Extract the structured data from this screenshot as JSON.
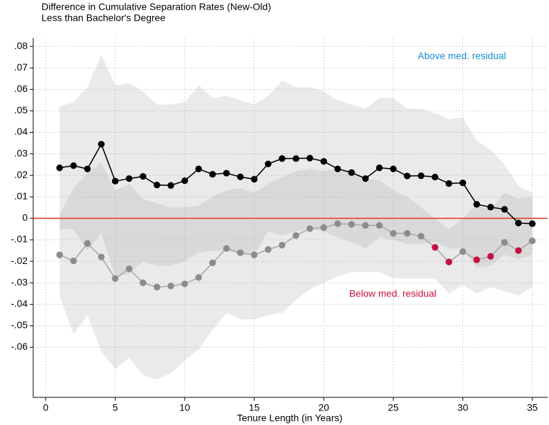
{
  "chart_data": {
    "type": "line",
    "title": "Difference in Cumulative Separation Rates (New-Old)",
    "subtitle": "Less than Bachelor's Degree",
    "xlabel": "Tenure Length (in Years)",
    "x": [
      1,
      2,
      3,
      4,
      5,
      6,
      7,
      8,
      9,
      10,
      11,
      12,
      13,
      14,
      15,
      16,
      17,
      18,
      19,
      20,
      21,
      22,
      23,
      24,
      25,
      26,
      27,
      28,
      29,
      30,
      31,
      32,
      33,
      34,
      35
    ],
    "xlim": [
      -0.9,
      36.1
    ],
    "xticks": [
      0,
      5,
      10,
      15,
      20,
      25,
      30,
      35
    ],
    "ylim": [
      -0.0833,
      0.0839
    ],
    "yticks": [
      {
        "value": -0.06,
        "label": "-.06"
      },
      {
        "value": -0.05,
        "label": "-.05"
      },
      {
        "value": -0.04,
        "label": "-.04"
      },
      {
        "value": -0.03,
        "label": "-.03"
      },
      {
        "value": -0.02,
        "label": "-.02"
      },
      {
        "value": -0.01,
        "label": "-.01"
      },
      0,
      {
        "value": 0.01,
        "label": ".01"
      },
      {
        "value": 0.02,
        "label": ".02"
      },
      {
        "value": 0.03,
        "label": ".03"
      },
      {
        "value": 0.04,
        "label": ".04"
      },
      {
        "value": 0.05,
        "label": ".05"
      },
      {
        "value": 0.06,
        "label": ".06"
      },
      {
        "value": 0.07,
        "label": ".07"
      },
      {
        "value": 0.08,
        "label": ".08"
      }
    ],
    "grid": true,
    "reference_line": {
      "y": 0,
      "color": "#e8402a"
    },
    "series": [
      {
        "name": "Above med. residual",
        "color": "#000000",
        "label_color": "#1a8ad8",
        "band_color": "rgba(160,160,160,0.22)",
        "values": [
          0.0235,
          0.0245,
          0.023,
          0.0345,
          0.0173,
          0.0185,
          0.0195,
          0.0155,
          0.0153,
          0.0175,
          0.023,
          0.0205,
          0.021,
          0.0193,
          0.0182,
          0.0253,
          0.0278,
          0.0278,
          0.028,
          0.0265,
          0.023,
          0.0213,
          0.0185,
          0.0235,
          0.023,
          0.0197,
          0.0198,
          0.0192,
          0.0162,
          0.0165,
          0.0065,
          0.0052,
          0.0042,
          -0.0022,
          -0.0025
        ],
        "ci_high": [
          0.052,
          0.054,
          0.061,
          0.076,
          0.062,
          0.063,
          0.059,
          0.053,
          0.053,
          0.054,
          0.062,
          0.056,
          0.057,
          0.055,
          0.053,
          0.057,
          0.064,
          0.061,
          0.061,
          0.059,
          0.055,
          0.053,
          0.051,
          0.056,
          0.056,
          0.051,
          0.051,
          0.049,
          0.046,
          0.047,
          0.036,
          0.032,
          0.025,
          0.015,
          0.012
        ],
        "ci_low": [
          -0.005,
          -0.005,
          -0.015,
          -0.007,
          -0.027,
          -0.026,
          -0.02,
          -0.022,
          -0.022,
          -0.02,
          -0.016,
          -0.015,
          -0.015,
          -0.017,
          -0.017,
          -0.006,
          -0.008,
          -0.006,
          -0.005,
          -0.006,
          -0.009,
          -0.011,
          -0.014,
          -0.009,
          -0.01,
          -0.012,
          -0.012,
          -0.011,
          -0.014,
          -0.014,
          -0.023,
          -0.022,
          -0.017,
          -0.019,
          -0.017
        ]
      },
      {
        "name": "Below med. residual",
        "color": "#a8a8a8",
        "label_color": "#c8103f",
        "band_color": "rgba(160,160,160,0.22)",
        "marker_colors": [
          "#8c8c8c",
          "#8c8c8c",
          "#8c8c8c",
          "#8c8c8c",
          "#8c8c8c",
          "#8c8c8c",
          "#8c8c8c",
          "#8c8c8c",
          "#8c8c8c",
          "#8c8c8c",
          "#8c8c8c",
          "#8c8c8c",
          "#8c8c8c",
          "#8c8c8c",
          "#8c8c8c",
          "#8c8c8c",
          "#8c8c8c",
          "#8c8c8c",
          "#8c8c8c",
          "#8c8c8c",
          "#8c8c8c",
          "#8c8c8c",
          "#8c8c8c",
          "#8c8c8c",
          "#8c8c8c",
          "#8c8c8c",
          "#8c8c8c",
          "#c8103f",
          "#c8103f",
          "#8c8c8c",
          "#c8103f",
          "#c8103f",
          "#8c8c8c",
          "#c8103f",
          "#8c8c8c"
        ],
        "values": [
          -0.017,
          -0.0198,
          -0.0117,
          -0.018,
          -0.028,
          -0.0235,
          -0.03,
          -0.032,
          -0.0315,
          -0.0305,
          -0.0275,
          -0.0207,
          -0.014,
          -0.016,
          -0.017,
          -0.0145,
          -0.0125,
          -0.008,
          -0.0048,
          -0.0043,
          -0.0025,
          -0.0028,
          -0.0033,
          -0.0033,
          -0.007,
          -0.007,
          -0.0083,
          -0.0135,
          -0.0203,
          -0.0155,
          -0.0193,
          -0.0177,
          -0.0112,
          -0.015,
          -0.0105
        ],
        "ci_high": [
          0.002,
          0.014,
          0.021,
          0.026,
          0.013,
          0.016,
          0.009,
          0.007,
          0.005,
          0.005,
          0.006,
          0.01,
          0.013,
          0.014,
          0.012,
          0.016,
          0.019,
          0.022,
          0.023,
          0.022,
          0.023,
          0.021,
          0.018,
          0.018,
          0.013,
          0.01,
          0.005,
          0,
          -0.005,
          0,
          0.006,
          0.004,
          0.012,
          0.009,
          0.01
        ],
        "ci_low": [
          -0.036,
          -0.054,
          -0.045,
          -0.062,
          -0.07,
          -0.065,
          -0.073,
          -0.075,
          -0.072,
          -0.066,
          -0.061,
          -0.052,
          -0.044,
          -0.047,
          -0.047,
          -0.045,
          -0.044,
          -0.038,
          -0.033,
          -0.03,
          -0.027,
          -0.025,
          -0.025,
          -0.025,
          -0.028,
          -0.028,
          -0.028,
          -0.028,
          -0.035,
          -0.031,
          -0.035,
          -0.032,
          -0.034,
          -0.036,
          -0.032
        ]
      }
    ]
  }
}
